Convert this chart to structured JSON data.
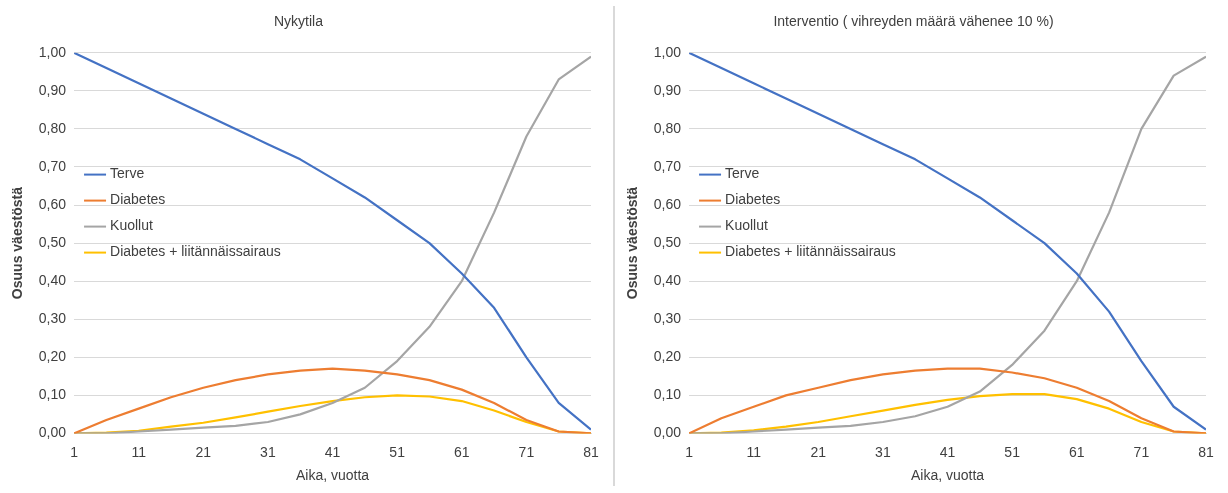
{
  "chart_data": [
    {
      "type": "line",
      "title": "Nykytila",
      "xlabel": "Aika, vuotta",
      "ylabel": "Osuus väestöstä",
      "x": [
        1,
        6,
        11,
        16,
        21,
        26,
        31,
        36,
        41,
        46,
        51,
        56,
        61,
        66,
        71,
        76,
        81
      ],
      "series": [
        {
          "name": "Terve",
          "color": "#4472c4",
          "values": [
            1.0,
            0.96,
            0.92,
            0.88,
            0.84,
            0.8,
            0.76,
            0.72,
            0.67,
            0.62,
            0.56,
            0.5,
            0.42,
            0.33,
            0.2,
            0.08,
            0.01
          ]
        },
        {
          "name": "Diabetes",
          "color": "#ed7d31",
          "values": [
            0.0,
            0.035,
            0.065,
            0.095,
            0.12,
            0.14,
            0.155,
            0.165,
            0.17,
            0.165,
            0.155,
            0.14,
            0.115,
            0.08,
            0.035,
            0.005,
            0.0
          ]
        },
        {
          "name": "Kuollut",
          "color": "#a5a5a5",
          "values": [
            0.0,
            0.0,
            0.005,
            0.01,
            0.015,
            0.02,
            0.03,
            0.05,
            0.08,
            0.12,
            0.19,
            0.28,
            0.4,
            0.58,
            0.78,
            0.93,
            0.99
          ]
        },
        {
          "name": "Diabetes + liitännäissairaus",
          "color": "#ffc000",
          "values": [
            0.0,
            0.002,
            0.007,
            0.018,
            0.028,
            0.042,
            0.057,
            0.072,
            0.085,
            0.095,
            0.1,
            0.097,
            0.085,
            0.06,
            0.03,
            0.005,
            0.0
          ]
        }
      ],
      "xlim": [
        1,
        81
      ],
      "xticks": [
        1,
        11,
        21,
        31,
        41,
        51,
        61,
        71,
        81
      ],
      "ylim": [
        0,
        1
      ],
      "yticks": [
        {
          "value": 0,
          "label": "0,00"
        },
        {
          "value": 0.1,
          "label": "0,10"
        },
        {
          "value": 0.2,
          "label": "0,20"
        },
        {
          "value": 0.3,
          "label": "0,30"
        },
        {
          "value": 0.4,
          "label": "0,40"
        },
        {
          "value": 0.5,
          "label": "0,50"
        },
        {
          "value": 0.6,
          "label": "0,60"
        },
        {
          "value": 0.7,
          "label": "0,70"
        },
        {
          "value": 0.8,
          "label": "0,80"
        },
        {
          "value": 0.9,
          "label": "0,90"
        },
        {
          "value": 1,
          "label": "1,00"
        }
      ],
      "grid": "y",
      "legend": "left",
      "marker": "none"
    },
    {
      "type": "line",
      "title": "Interventio ( vihreyden määrä vähenee 10 %)",
      "xlabel": "Aika, vuotta",
      "ylabel": "Osuus väestöstä",
      "x": [
        1,
        6,
        11,
        16,
        21,
        26,
        31,
        36,
        41,
        46,
        51,
        56,
        61,
        66,
        71,
        76,
        81
      ],
      "series": [
        {
          "name": "Terve",
          "color": "#4472c4",
          "values": [
            1.0,
            0.96,
            0.92,
            0.88,
            0.84,
            0.8,
            0.76,
            0.72,
            0.67,
            0.62,
            0.56,
            0.5,
            0.42,
            0.32,
            0.19,
            0.07,
            0.01
          ]
        },
        {
          "name": "Diabetes",
          "color": "#ed7d31",
          "values": [
            0.0,
            0.04,
            0.07,
            0.1,
            0.12,
            0.14,
            0.155,
            0.165,
            0.17,
            0.17,
            0.16,
            0.145,
            0.12,
            0.085,
            0.04,
            0.005,
            0.0
          ]
        },
        {
          "name": "Kuollut",
          "color": "#a5a5a5",
          "values": [
            0.0,
            0.0,
            0.005,
            0.01,
            0.015,
            0.02,
            0.03,
            0.045,
            0.07,
            0.11,
            0.18,
            0.27,
            0.4,
            0.58,
            0.8,
            0.94,
            0.99
          ]
        },
        {
          "name": "Diabetes + liitännäissairaus",
          "color": "#ffc000",
          "values": [
            0.0,
            0.002,
            0.008,
            0.018,
            0.03,
            0.045,
            0.06,
            0.075,
            0.088,
            0.098,
            0.103,
            0.103,
            0.09,
            0.065,
            0.03,
            0.005,
            0.0
          ]
        }
      ],
      "xlim": [
        1,
        81
      ],
      "xticks": [
        1,
        11,
        21,
        31,
        41,
        51,
        61,
        71,
        81
      ],
      "ylim": [
        0,
        1
      ],
      "yticks": [
        {
          "value": 0,
          "label": "0,00"
        },
        {
          "value": 0.1,
          "label": "0,10"
        },
        {
          "value": 0.2,
          "label": "0,20"
        },
        {
          "value": 0.3,
          "label": "0,30"
        },
        {
          "value": 0.4,
          "label": "0,40"
        },
        {
          "value": 0.5,
          "label": "0,50"
        },
        {
          "value": 0.6,
          "label": "0,60"
        },
        {
          "value": 0.7,
          "label": "0,70"
        },
        {
          "value": 0.8,
          "label": "0,80"
        },
        {
          "value": 0.9,
          "label": "0,90"
        },
        {
          "value": 1,
          "label": "1,00"
        }
      ],
      "grid": "y",
      "legend": "left",
      "marker": "none"
    }
  ]
}
